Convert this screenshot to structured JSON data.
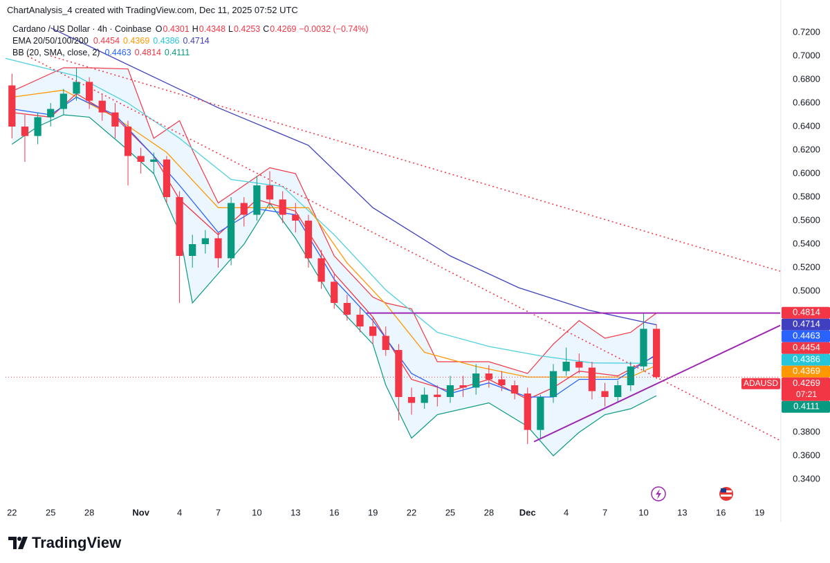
{
  "header": {
    "watermark": "ChartAnalysis_4 created with TradingView.com, Dec 11, 2025 07:52 UTC",
    "symbol": "Cardano / US Dollar · 4h · Coinbase",
    "ohlc": [
      {
        "key": "O",
        "value": 0.4301
      },
      {
        "key": "H",
        "value": 0.4348
      },
      {
        "key": "L",
        "value": 0.4253
      },
      {
        "key": "C",
        "value": 0.4269
      }
    ],
    "change": "−0.0032 (−0.74%)"
  },
  "logo": "TradingView",
  "chart_data": {
    "type": "candlestick",
    "up_color": "#089981",
    "down_color": "#f23645",
    "x": [
      0,
      1,
      2,
      3,
      4,
      5,
      6,
      7,
      8,
      9,
      10,
      11,
      12,
      13,
      14,
      15,
      16,
      17,
      18,
      19,
      20,
      21,
      22,
      23,
      24,
      25,
      26,
      27,
      28,
      29,
      30,
      31,
      32,
      33,
      34,
      35,
      36,
      37,
      38,
      39,
      40,
      41,
      42,
      43,
      44,
      45,
      46,
      47,
      48,
      49,
      50
    ],
    "open": [
      0.675,
      0.64,
      0.632,
      0.648,
      0.655,
      0.668,
      0.678,
      0.662,
      0.652,
      0.64,
      0.615,
      0.61,
      0.612,
      0.58,
      0.53,
      0.54,
      0.545,
      0.528,
      0.575,
      0.565,
      0.59,
      0.578,
      0.565,
      0.56,
      0.528,
      0.508,
      0.49,
      0.48,
      0.47,
      0.462,
      0.45,
      0.41,
      0.405,
      0.412,
      0.41,
      0.42,
      0.418,
      0.43,
      0.425,
      0.42,
      0.413,
      0.382,
      0.41,
      0.432,
      0.44,
      0.435,
      0.415,
      0.41,
      0.42,
      0.436,
      0.468
    ],
    "high": [
      0.685,
      0.65,
      0.652,
      0.66,
      0.672,
      0.69,
      0.682,
      0.668,
      0.66,
      0.645,
      0.622,
      0.618,
      0.615,
      0.585,
      0.548,
      0.552,
      0.55,
      0.58,
      0.58,
      0.598,
      0.602,
      0.585,
      0.575,
      0.565,
      0.535,
      0.515,
      0.497,
      0.487,
      0.478,
      0.47,
      0.455,
      0.418,
      0.418,
      0.42,
      0.428,
      0.428,
      0.438,
      0.437,
      0.432,
      0.424,
      0.418,
      0.412,
      0.438,
      0.452,
      0.447,
      0.44,
      0.422,
      0.424,
      0.44,
      0.4814,
      0.472
    ],
    "low": [
      0.63,
      0.61,
      0.625,
      0.64,
      0.65,
      0.662,
      0.655,
      0.645,
      0.63,
      0.59,
      0.6,
      0.6,
      0.575,
      0.49,
      0.52,
      0.532,
      0.52,
      0.522,
      0.555,
      0.56,
      0.57,
      0.558,
      0.55,
      0.52,
      0.502,
      0.485,
      0.475,
      0.465,
      0.455,
      0.445,
      0.39,
      0.395,
      0.4,
      0.402,
      0.405,
      0.41,
      0.412,
      0.418,
      0.415,
      0.408,
      0.37,
      0.375,
      0.405,
      0.428,
      0.43,
      0.408,
      0.402,
      0.405,
      0.415,
      0.432,
      0.4253
    ],
    "close": [
      0.64,
      0.632,
      0.648,
      0.655,
      0.668,
      0.678,
      0.662,
      0.652,
      0.64,
      0.615,
      0.61,
      0.612,
      0.58,
      0.53,
      0.54,
      0.545,
      0.528,
      0.575,
      0.565,
      0.59,
      0.578,
      0.565,
      0.56,
      0.528,
      0.508,
      0.49,
      0.48,
      0.47,
      0.462,
      0.45,
      0.41,
      0.405,
      0.412,
      0.41,
      0.42,
      0.418,
      0.43,
      0.425,
      0.42,
      0.413,
      0.382,
      0.41,
      0.432,
      0.44,
      0.435,
      0.415,
      0.41,
      0.42,
      0.436,
      0.468,
      0.4269
    ],
    "bands": [
      {
        "x": [
          0,
          2,
          4,
          6,
          9,
          11,
          13,
          14,
          16,
          18,
          20,
          22,
          25,
          28,
          29,
          31,
          33,
          37,
          40,
          42,
          44,
          46,
          48,
          50
        ],
        "upper": [
          0.67,
          0.68,
          0.69,
          0.69,
          0.689,
          0.63,
          0.645,
          0.62,
          0.575,
          0.59,
          0.605,
          0.6,
          0.53,
          0.495,
          0.49,
          0.485,
          0.44,
          0.44,
          0.43,
          0.455,
          0.475,
          0.46,
          0.465,
          0.4814
        ],
        "lower": [
          0.625,
          0.64,
          0.65,
          0.648,
          0.62,
          0.6,
          0.55,
          0.49,
          0.515,
          0.54,
          0.575,
          0.545,
          0.49,
          0.455,
          0.42,
          0.375,
          0.395,
          0.405,
          0.385,
          0.36,
          0.38,
          0.395,
          0.4,
          0.4111
        ],
        "upper_color": "#f23645",
        "lower_color": "#089981",
        "fill": "#e3f2fd"
      }
    ],
    "lines": [
      {
        "color": "#3f3fbf",
        "x": [
          3,
          16,
          23,
          28,
          34,
          39.3,
          44.7,
          50
        ],
        "values": [
          0.724,
          0.656,
          0.624,
          0.571,
          0.53,
          0.503,
          0.484,
          0.4714
        ]
      },
      {
        "color": "#4dd0e1",
        "x": [
          -0.5,
          5,
          9,
          13,
          17,
          21,
          25,
          29,
          33,
          37,
          41,
          45,
          50
        ],
        "values": [
          0.698,
          0.683,
          0.66,
          0.63,
          0.595,
          0.589,
          0.548,
          0.501,
          0.465,
          0.453,
          0.445,
          0.439,
          0.4386
        ]
      },
      {
        "color": "#ff9800",
        "x": [
          0,
          4,
          8,
          12,
          16,
          20,
          23,
          26,
          29,
          32,
          36,
          40,
          44,
          48,
          50
        ],
        "values": [
          0.665,
          0.671,
          0.648,
          0.618,
          0.571,
          0.571,
          0.571,
          0.524,
          0.489,
          0.448,
          0.436,
          0.427,
          0.427,
          0.427,
          0.4369
        ]
      },
      {
        "color": "#f23645",
        "x": [
          0,
          3,
          5,
          8,
          11,
          13,
          16,
          19,
          22,
          25,
          28,
          31,
          34,
          37,
          40,
          42,
          44,
          47,
          50
        ],
        "values": [
          0.652,
          0.648,
          0.668,
          0.648,
          0.615,
          0.578,
          0.548,
          0.578,
          0.568,
          0.515,
          0.478,
          0.425,
          0.415,
          0.425,
          0.408,
          0.418,
          0.432,
          0.428,
          0.4454
        ]
      },
      {
        "color": "#2962ff",
        "x": [
          0,
          3,
          5,
          8,
          11,
          13,
          16,
          19,
          22,
          25,
          28,
          31,
          34,
          37,
          40,
          42,
          44,
          47,
          50
        ],
        "values": [
          0.655,
          0.65,
          0.665,
          0.65,
          0.615,
          0.59,
          0.55,
          0.57,
          0.565,
          0.51,
          0.475,
          0.43,
          0.413,
          0.422,
          0.41,
          0.41,
          0.425,
          0.425,
          0.4463
        ]
      }
    ],
    "trendlines": [
      {
        "x": [
          1.2,
          59.6
        ],
        "y": [
          0.7,
          0.373
        ],
        "color": "#f23645",
        "dash": true
      },
      {
        "x": [
          3,
          59.6
        ],
        "y": [
          0.7,
          0.517
        ],
        "color": "#f23645",
        "dash": true
      },
      {
        "x": [
          27.5,
          59.7
        ],
        "y": [
          0.4814,
          0.4814
        ],
        "color": "#9c27b0",
        "dash": false
      },
      {
        "x": [
          40.5,
          59.7
        ],
        "y": [
          0.372,
          0.4714
        ],
        "color": "#9c27b0",
        "dash": false
      }
    ],
    "legend": [
      {
        "label": "EMA 20/50/100/200",
        "values": [
          0.4454,
          0.4369,
          0.4386,
          0.4714
        ],
        "colors": [
          "#f23645",
          "#ff9800",
          "#26c6da",
          "#3f3fbf"
        ]
      },
      {
        "label": "BB (20, SMA, close, 2)",
        "values": [
          0.4463,
          0.4814,
          0.4111
        ],
        "colors": [
          "#2962ff",
          "#f23645",
          "#089981"
        ]
      }
    ],
    "price_tags": [
      {
        "value": 0.4814,
        "color": "#f23645"
      },
      {
        "value": 0.4714,
        "color": "#3f3fbf"
      },
      {
        "value": 0.4463,
        "color": "#2962ff"
      },
      {
        "value": 0.4454,
        "color": "#f23645"
      },
      {
        "value": 0.4386,
        "color": "#26c6da"
      },
      {
        "value": 0.4369,
        "color": "#ff9800"
      },
      {
        "value": 0.4111,
        "color": "#089981"
      }
    ],
    "last_price": {
      "symbol": "ADAUSD",
      "value": 0.4269,
      "countdown": "07:21",
      "color": "#f23645"
    },
    "xlim": [
      -0.5,
      59.6
    ],
    "ylim": [
      0.31824,
      0.74765
    ],
    "xticks": [
      {
        "value": 0,
        "label": "22"
      },
      {
        "value": 3,
        "label": "25"
      },
      {
        "value": 6,
        "label": "28"
      },
      {
        "value": 10,
        "label": "Nov"
      },
      {
        "value": 13,
        "label": "4"
      },
      {
        "value": 16,
        "label": "7"
      },
      {
        "value": 19,
        "label": "10"
      },
      {
        "value": 22,
        "label": "13"
      },
      {
        "value": 25,
        "label": "16"
      },
      {
        "value": 28,
        "label": "19"
      },
      {
        "value": 31,
        "label": "22"
      },
      {
        "value": 34,
        "label": "25"
      },
      {
        "value": 37,
        "label": "28"
      },
      {
        "value": 40,
        "label": "Dec"
      },
      {
        "value": 43,
        "label": "4"
      },
      {
        "value": 46,
        "label": "7"
      },
      {
        "value": 49,
        "label": "10"
      },
      {
        "value": 52,
        "label": "13"
      },
      {
        "value": 55,
        "label": "16"
      },
      {
        "value": 58,
        "label": "19"
      }
    ],
    "yticks": [
      {
        "value": 0.34,
        "label": "0.3400"
      },
      {
        "value": 0.36,
        "label": "0.3600"
      },
      {
        "value": 0.38,
        "label": "0.3800"
      },
      {
        "value": 0.4,
        "label": "0.4000"
      },
      {
        "value": 0.42,
        "label": "0.4200"
      },
      {
        "value": 0.44,
        "label": "0.4400"
      },
      {
        "value": 0.46,
        "label": "0.4600"
      },
      {
        "value": 0.48,
        "label": "0.4800"
      },
      {
        "value": 0.5,
        "label": "0.5000"
      },
      {
        "value": 0.52,
        "label": "0.5200"
      },
      {
        "value": 0.54,
        "label": "0.5400"
      },
      {
        "value": 0.56,
        "label": "0.5600"
      },
      {
        "value": 0.58,
        "label": "0.5800"
      },
      {
        "value": 0.6,
        "label": "0.6000"
      },
      {
        "value": 0.62,
        "label": "0.6200"
      },
      {
        "value": 0.64,
        "label": "0.6400"
      },
      {
        "value": 0.66,
        "label": "0.6600"
      },
      {
        "value": 0.68,
        "label": "0.6800"
      },
      {
        "value": 0.7,
        "label": "0.7000"
      },
      {
        "value": 0.72,
        "label": "0.7200"
      }
    ],
    "grid": false
  }
}
